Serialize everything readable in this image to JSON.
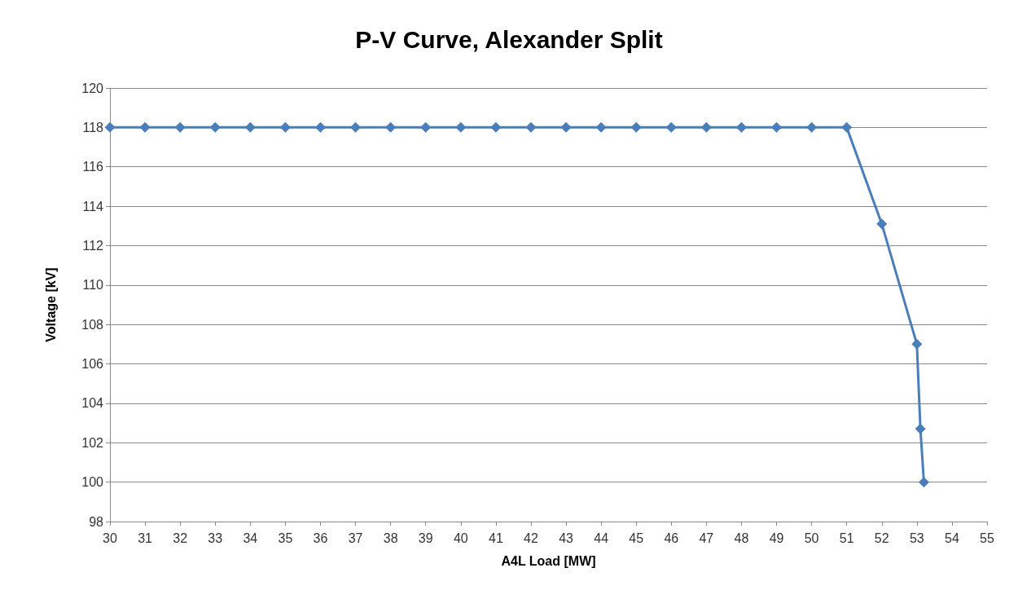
{
  "chart_data": {
    "type": "line",
    "title": "P-V Curve, Alexander Split",
    "xlabel": "A4L Load [MW]",
    "ylabel": "Voltage [kV]",
    "x": [
      30,
      31,
      32,
      33,
      34,
      35,
      36,
      37,
      38,
      39,
      40,
      41,
      42,
      43,
      44,
      45,
      46,
      47,
      48,
      49,
      50,
      51,
      52,
      53,
      53.1,
      53.2
    ],
    "series": [
      {
        "color": "#4a7ebb",
        "values": [
          118,
          118,
          118,
          118,
          118,
          118,
          118,
          118,
          118,
          118,
          118,
          118,
          118,
          118,
          118,
          118,
          118,
          118,
          118,
          118,
          118,
          118,
          113.1,
          107,
          102.7,
          100
        ]
      }
    ],
    "xlim": [
      30,
      55
    ],
    "xticks": [
      30,
      31,
      32,
      33,
      34,
      35,
      36,
      37,
      38,
      39,
      40,
      41,
      42,
      43,
      44,
      45,
      46,
      47,
      48,
      49,
      50,
      51,
      52,
      53,
      54,
      55
    ],
    "ylim": [
      98,
      120
    ],
    "yticks": [
      98,
      100,
      102,
      104,
      106,
      108,
      110,
      112,
      114,
      116,
      118,
      120
    ],
    "grid": "y",
    "marker": "diamond",
    "line_style": "solid"
  }
}
